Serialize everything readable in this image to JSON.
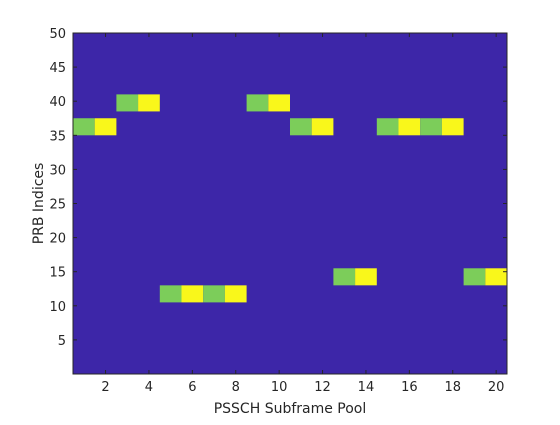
{
  "chart_data": {
    "type": "heatmap",
    "title": "",
    "xlabel": "PSSCH Subframe Pool",
    "ylabel": "PRB Indices",
    "xlim": [
      0.5,
      20.5
    ],
    "ylim": [
      0,
      50
    ],
    "x_ticks": [
      2,
      4,
      6,
      8,
      10,
      12,
      14,
      16,
      18,
      20
    ],
    "y_ticks": [
      5,
      10,
      15,
      20,
      25,
      30,
      35,
      40,
      45,
      50
    ],
    "grid": false,
    "legend": "none",
    "cell_height": 2.5,
    "colors": {
      "background": "#3d26a8",
      "level_1": "#7ccd5a",
      "level_2": "#f9f71b",
      "axis": "#262626"
    },
    "cells": [
      {
        "x": 1,
        "y0": 35,
        "level": 1
      },
      {
        "x": 2,
        "y0": 35,
        "level": 2
      },
      {
        "x": 3,
        "y0": 38.5,
        "level": 1
      },
      {
        "x": 4,
        "y0": 38.5,
        "level": 2
      },
      {
        "x": 5,
        "y0": 10.5,
        "level": 1
      },
      {
        "x": 6,
        "y0": 10.5,
        "level": 2
      },
      {
        "x": 7,
        "y0": 10.5,
        "level": 1
      },
      {
        "x": 8,
        "y0": 10.5,
        "level": 2
      },
      {
        "x": 9,
        "y0": 38.5,
        "level": 1
      },
      {
        "x": 10,
        "y0": 38.5,
        "level": 2
      },
      {
        "x": 11,
        "y0": 35,
        "level": 1
      },
      {
        "x": 12,
        "y0": 35,
        "level": 2
      },
      {
        "x": 13,
        "y0": 13,
        "level": 1
      },
      {
        "x": 14,
        "y0": 13,
        "level": 2
      },
      {
        "x": 15,
        "y0": 35,
        "level": 1
      },
      {
        "x": 16,
        "y0": 35,
        "level": 2
      },
      {
        "x": 17,
        "y0": 35,
        "level": 1
      },
      {
        "x": 18,
        "y0": 35,
        "level": 2
      },
      {
        "x": 19,
        "y0": 13,
        "level": 1
      },
      {
        "x": 20,
        "y0": 13,
        "level": 2
      }
    ]
  }
}
